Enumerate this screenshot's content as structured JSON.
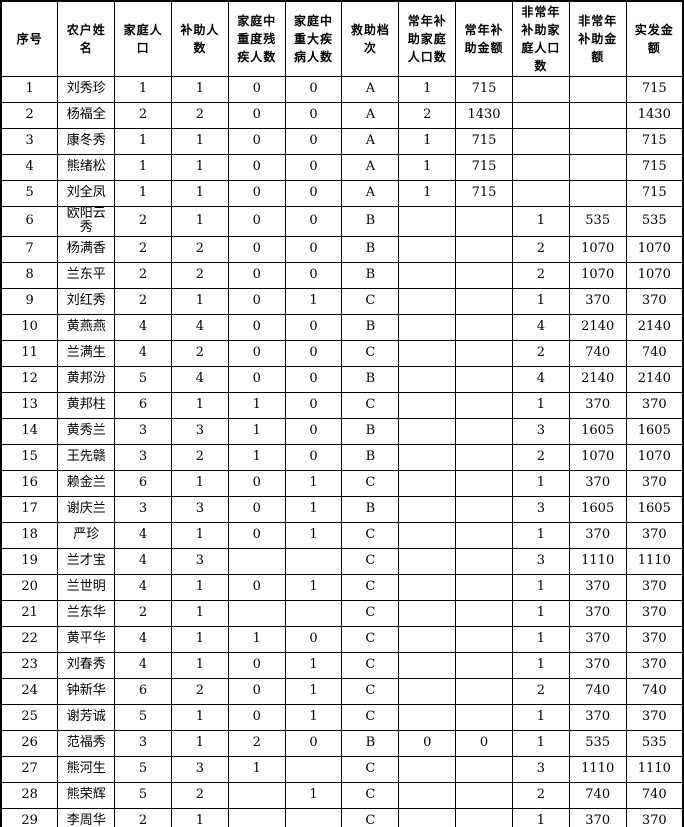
{
  "accent_colors": {
    "grid_line": "#000000",
    "text": "#000000",
    "background": "#ffffff"
  },
  "table": {
    "headers": [
      "序号",
      "农户姓名",
      "家庭人口",
      "补助人数",
      "家庭中重度残疾人数",
      "家庭中重大疾病人数",
      "救助档次",
      "常年补助家庭人口数",
      "常年补助金额",
      "非常年补助家庭人口数",
      "非常年补助金额",
      "实发金额"
    ],
    "rows": [
      [
        "1",
        "刘秀珍",
        "1",
        "1",
        "0",
        "0",
        "A",
        "1",
        "715",
        "",
        "",
        "715"
      ],
      [
        "2",
        "杨福全",
        "2",
        "2",
        "0",
        "0",
        "A",
        "2",
        "1430",
        "",
        "",
        "1430"
      ],
      [
        "3",
        "康冬秀",
        "1",
        "1",
        "0",
        "0",
        "A",
        "1",
        "715",
        "",
        "",
        "715"
      ],
      [
        "4",
        "熊绪松",
        "1",
        "1",
        "0",
        "0",
        "A",
        "1",
        "715",
        "",
        "",
        "715"
      ],
      [
        "5",
        "刘全凤",
        "1",
        "1",
        "0",
        "0",
        "A",
        "1",
        "715",
        "",
        "",
        "715"
      ],
      [
        "6",
        "欧阳云秀",
        "2",
        "1",
        "0",
        "0",
        "B",
        "",
        "",
        "1",
        "535",
        "535"
      ],
      [
        "7",
        "杨满香",
        "2",
        "2",
        "0",
        "0",
        "B",
        "",
        "",
        "2",
        "1070",
        "1070"
      ],
      [
        "8",
        "兰东平",
        "2",
        "2",
        "0",
        "0",
        "B",
        "",
        "",
        "2",
        "1070",
        "1070"
      ],
      [
        "9",
        "刘红秀",
        "2",
        "1",
        "0",
        "1",
        "C",
        "",
        "",
        "1",
        "370",
        "370"
      ],
      [
        "10",
        "黄燕燕",
        "4",
        "4",
        "0",
        "0",
        "B",
        "",
        "",
        "4",
        "2140",
        "2140"
      ],
      [
        "11",
        "兰满生",
        "4",
        "2",
        "0",
        "0",
        "C",
        "",
        "",
        "2",
        "740",
        "740"
      ],
      [
        "12",
        "黄邦汾",
        "5",
        "4",
        "0",
        "0",
        "B",
        "",
        "",
        "4",
        "2140",
        "2140"
      ],
      [
        "13",
        "黄邦柱",
        "6",
        "1",
        "1",
        "0",
        "C",
        "",
        "",
        "1",
        "370",
        "370"
      ],
      [
        "14",
        "黄秀兰",
        "3",
        "3",
        "1",
        "0",
        "B",
        "",
        "",
        "3",
        "1605",
        "1605"
      ],
      [
        "15",
        "王先赣",
        "3",
        "2",
        "1",
        "0",
        "B",
        "",
        "",
        "2",
        "1070",
        "1070"
      ],
      [
        "16",
        "赖金兰",
        "6",
        "1",
        "0",
        "1",
        "C",
        "",
        "",
        "1",
        "370",
        "370"
      ],
      [
        "17",
        "谢庆兰",
        "3",
        "3",
        "0",
        "1",
        "B",
        "",
        "",
        "3",
        "1605",
        "1605"
      ],
      [
        "18",
        "严珍",
        "4",
        "1",
        "0",
        "1",
        "C",
        "",
        "",
        "1",
        "370",
        "370"
      ],
      [
        "19",
        "兰才宝",
        "4",
        "3",
        "",
        "",
        "C",
        "",
        "",
        "3",
        "1110",
        "1110"
      ],
      [
        "20",
        "兰世明",
        "4",
        "1",
        "0",
        "1",
        "C",
        "",
        "",
        "1",
        "370",
        "370"
      ],
      [
        "21",
        "兰东华",
        "2",
        "1",
        "",
        "",
        "C",
        "",
        "",
        "1",
        "370",
        "370"
      ],
      [
        "22",
        "黄平华",
        "4",
        "1",
        "1",
        "0",
        "C",
        "",
        "",
        "1",
        "370",
        "370"
      ],
      [
        "23",
        "刘春秀",
        "4",
        "1",
        "0",
        "1",
        "C",
        "",
        "",
        "1",
        "370",
        "370"
      ],
      [
        "24",
        "钟新华",
        "6",
        "2",
        "0",
        "1",
        "C",
        "",
        "",
        "2",
        "740",
        "740"
      ],
      [
        "25",
        "谢芳诚",
        "5",
        "1",
        "0",
        "1",
        "C",
        "",
        "",
        "1",
        "370",
        "370"
      ],
      [
        "26",
        "范福秀",
        "3",
        "1",
        "2",
        "0",
        "B",
        "0",
        "0",
        "1",
        "535",
        "535"
      ],
      [
        "27",
        "熊河生",
        "5",
        "3",
        "1",
        "",
        "C",
        "",
        "",
        "3",
        "1110",
        "1110"
      ],
      [
        "28",
        "熊荣辉",
        "5",
        "2",
        "",
        "1",
        "C",
        "",
        "",
        "2",
        "740",
        "740"
      ],
      [
        "29",
        "李周华",
        "2",
        "1",
        "",
        "",
        "C",
        "",
        "",
        "1",
        "370",
        "370"
      ]
    ]
  }
}
